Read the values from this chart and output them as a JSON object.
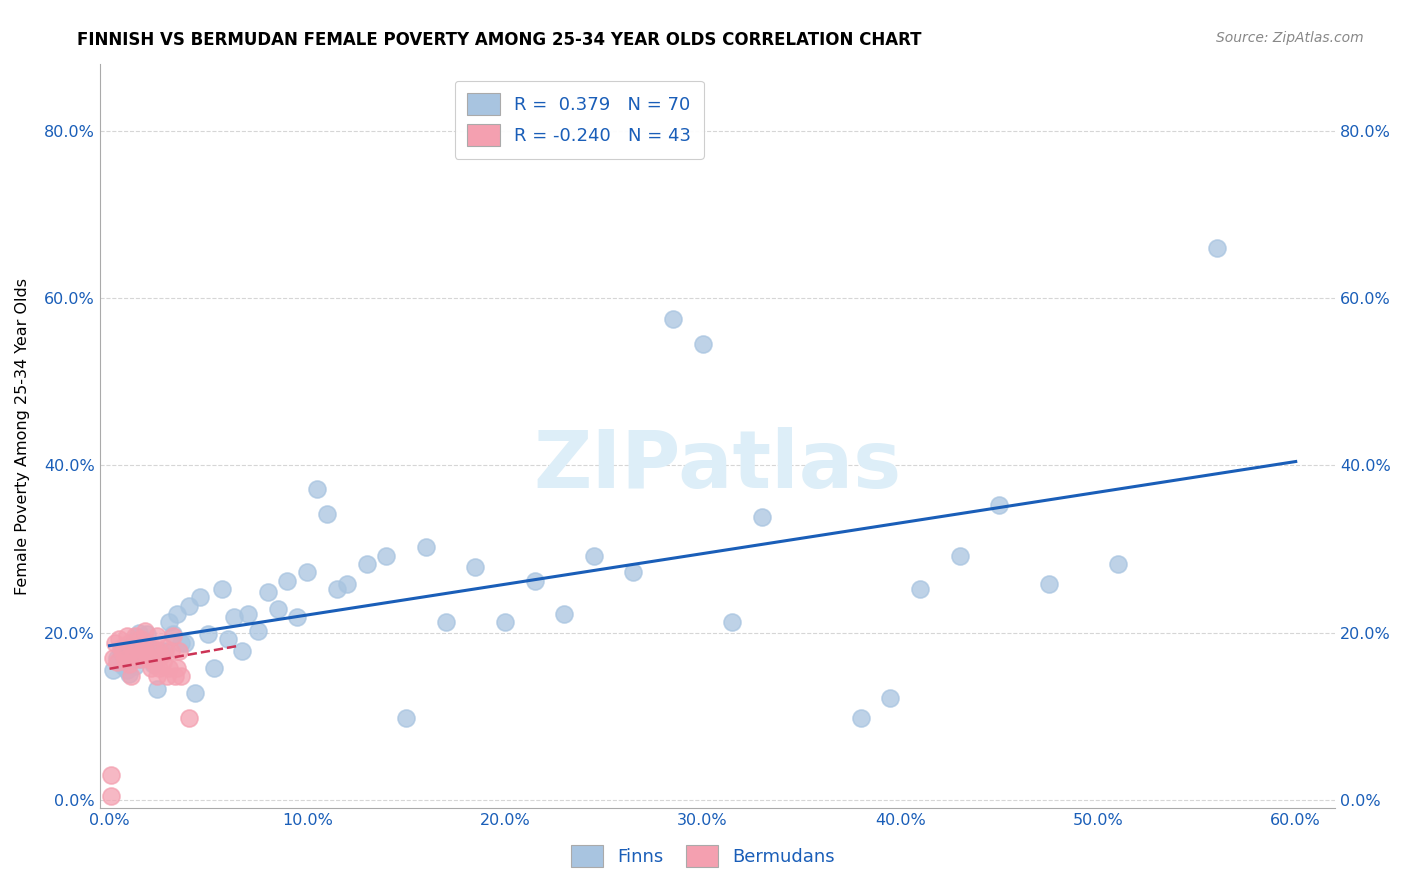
{
  "title": "FINNISH VS BERMUDAN FEMALE POVERTY AMONG 25-34 YEAR OLDS CORRELATION CHART",
  "source": "Source: ZipAtlas.com",
  "ylabel": "Female Poverty Among 25-34 Year Olds",
  "xlabel_finns": "Finns",
  "xlabel_bermudans": "Bermudans",
  "xlim": [
    -0.005,
    0.62
  ],
  "ylim": [
    -0.01,
    0.88
  ],
  "xticks": [
    0.0,
    0.1,
    0.2,
    0.3,
    0.4,
    0.5,
    0.6
  ],
  "yticks": [
    0.0,
    0.2,
    0.4,
    0.6,
    0.8
  ],
  "finns_R": 0.379,
  "finns_N": 70,
  "bermudans_R": -0.24,
  "bermudans_N": 43,
  "finns_color": "#a8c4e0",
  "bermudans_color": "#f4a0b0",
  "finns_line_color": "#1a5eb8",
  "bermudans_line_color": "#cc3355",
  "watermark_color": "#ddeef8",
  "background_color": "#ffffff",
  "grid_color": "#cccccc",
  "tick_color": "#1a5eb8",
  "finns_x": [
    0.002,
    0.004,
    0.005,
    0.006,
    0.007,
    0.008,
    0.009,
    0.01,
    0.011,
    0.012,
    0.013,
    0.014,
    0.015,
    0.016,
    0.017,
    0.018,
    0.019,
    0.02,
    0.022,
    0.024,
    0.026,
    0.028,
    0.03,
    0.032,
    0.034,
    0.036,
    0.038,
    0.04,
    0.043,
    0.046,
    0.05,
    0.053,
    0.057,
    0.06,
    0.063,
    0.067,
    0.07,
    0.075,
    0.08,
    0.085,
    0.09,
    0.095,
    0.1,
    0.105,
    0.11,
    0.115,
    0.12,
    0.13,
    0.14,
    0.15,
    0.16,
    0.17,
    0.185,
    0.2,
    0.215,
    0.23,
    0.245,
    0.265,
    0.285,
    0.3,
    0.315,
    0.33,
    0.38,
    0.395,
    0.41,
    0.43,
    0.45,
    0.475,
    0.51,
    0.56
  ],
  "finns_y": [
    0.155,
    0.17,
    0.165,
    0.175,
    0.16,
    0.18,
    0.155,
    0.15,
    0.185,
    0.17,
    0.16,
    0.195,
    0.2,
    0.168,
    0.178,
    0.188,
    0.198,
    0.183,
    0.162,
    0.132,
    0.178,
    0.178,
    0.212,
    0.198,
    0.222,
    0.188,
    0.188,
    0.232,
    0.128,
    0.242,
    0.198,
    0.158,
    0.252,
    0.192,
    0.218,
    0.178,
    0.222,
    0.202,
    0.248,
    0.228,
    0.262,
    0.218,
    0.272,
    0.372,
    0.342,
    0.252,
    0.258,
    0.282,
    0.292,
    0.098,
    0.302,
    0.212,
    0.278,
    0.212,
    0.262,
    0.222,
    0.292,
    0.272,
    0.575,
    0.545,
    0.212,
    0.338,
    0.098,
    0.122,
    0.252,
    0.292,
    0.352,
    0.258,
    0.282,
    0.66
  ],
  "bermudans_x": [
    0.001,
    0.002,
    0.003,
    0.004,
    0.005,
    0.006,
    0.007,
    0.008,
    0.009,
    0.01,
    0.01,
    0.011,
    0.012,
    0.013,
    0.014,
    0.015,
    0.016,
    0.016,
    0.017,
    0.018,
    0.018,
    0.019,
    0.02,
    0.021,
    0.022,
    0.023,
    0.024,
    0.024,
    0.025,
    0.025,
    0.026,
    0.027,
    0.028,
    0.029,
    0.03,
    0.031,
    0.032,
    0.033,
    0.034,
    0.035,
    0.036,
    0.04,
    0.001
  ],
  "bermudans_y": [
    0.03,
    0.17,
    0.188,
    0.165,
    0.192,
    0.182,
    0.175,
    0.168,
    0.196,
    0.162,
    0.188,
    0.148,
    0.172,
    0.196,
    0.182,
    0.168,
    0.192,
    0.175,
    0.188,
    0.178,
    0.202,
    0.172,
    0.168,
    0.158,
    0.182,
    0.162,
    0.196,
    0.148,
    0.178,
    0.158,
    0.172,
    0.165,
    0.182,
    0.148,
    0.158,
    0.178,
    0.196,
    0.148,
    0.158,
    0.178,
    0.148,
    0.098,
    0.005
  ],
  "watermark": "ZIPatlas"
}
